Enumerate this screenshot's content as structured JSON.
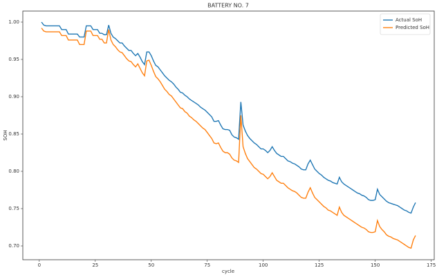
{
  "chart_data": {
    "type": "line",
    "title": "BATTERY NO. 7",
    "x_label": "cycle",
    "y_label": "SOH",
    "x": [
      1,
      2,
      3,
      4,
      5,
      6,
      7,
      8,
      9,
      10,
      11,
      12,
      13,
      14,
      15,
      16,
      17,
      18,
      19,
      20,
      21,
      22,
      23,
      24,
      25,
      26,
      27,
      28,
      29,
      30,
      31,
      32,
      33,
      34,
      35,
      36,
      37,
      38,
      39,
      40,
      41,
      42,
      43,
      44,
      45,
      46,
      47,
      48,
      49,
      50,
      51,
      52,
      53,
      54,
      55,
      56,
      57,
      58,
      59,
      60,
      61,
      62,
      63,
      64,
      65,
      66,
      67,
      68,
      69,
      70,
      71,
      72,
      73,
      74,
      75,
      76,
      77,
      78,
      79,
      80,
      81,
      82,
      83,
      84,
      85,
      86,
      87,
      88,
      89,
      90,
      91,
      92,
      93,
      94,
      95,
      96,
      97,
      98,
      99,
      100,
      101,
      102,
      103,
      104,
      105,
      106,
      107,
      108,
      109,
      110,
      111,
      112,
      113,
      114,
      115,
      116,
      117,
      118,
      119,
      120,
      121,
      122,
      123,
      124,
      125,
      126,
      127,
      128,
      129,
      130,
      131,
      132,
      133,
      134,
      135,
      136,
      137,
      138,
      139,
      140,
      141,
      142,
      143,
      144,
      145,
      146,
      147,
      148,
      149,
      150,
      151,
      152,
      153,
      154,
      155,
      156,
      157,
      158,
      159,
      160,
      161,
      162,
      163,
      164,
      165,
      166,
      167,
      168
    ],
    "series": [
      {
        "name": "Actual SoH",
        "color": "#1f77b4",
        "values": [
          1.0,
          0.996,
          0.995,
          0.995,
          0.995,
          0.995,
          0.995,
          0.995,
          0.995,
          0.99,
          0.99,
          0.99,
          0.984,
          0.984,
          0.984,
          0.984,
          0.984,
          0.98,
          0.98,
          0.98,
          0.995,
          0.995,
          0.995,
          0.99,
          0.99,
          0.99,
          0.985,
          0.985,
          0.983,
          0.983,
          0.996,
          0.985,
          0.98,
          0.978,
          0.975,
          0.972,
          0.972,
          0.968,
          0.965,
          0.962,
          0.962,
          0.958,
          0.955,
          0.958,
          0.953,
          0.947,
          0.943,
          0.96,
          0.96,
          0.955,
          0.948,
          0.942,
          0.94,
          0.936,
          0.932,
          0.928,
          0.925,
          0.922,
          0.92,
          0.917,
          0.913,
          0.91,
          0.906,
          0.905,
          0.902,
          0.9,
          0.897,
          0.895,
          0.893,
          0.891,
          0.889,
          0.886,
          0.884,
          0.882,
          0.879,
          0.876,
          0.873,
          0.867,
          0.867,
          0.868,
          0.862,
          0.857,
          0.856,
          0.856,
          0.855,
          0.849,
          0.846,
          0.845,
          0.843,
          0.893,
          0.862,
          0.854,
          0.848,
          0.844,
          0.841,
          0.838,
          0.836,
          0.833,
          0.83,
          0.83,
          0.828,
          0.825,
          0.828,
          0.833,
          0.828,
          0.824,
          0.822,
          0.82,
          0.82,
          0.817,
          0.814,
          0.813,
          0.811,
          0.81,
          0.808,
          0.806,
          0.803,
          0.802,
          0.802,
          0.81,
          0.815,
          0.809,
          0.803,
          0.8,
          0.797,
          0.795,
          0.792,
          0.79,
          0.788,
          0.787,
          0.785,
          0.784,
          0.783,
          0.792,
          0.786,
          0.783,
          0.781,
          0.779,
          0.777,
          0.775,
          0.773,
          0.771,
          0.77,
          0.768,
          0.767,
          0.765,
          0.762,
          0.761,
          0.761,
          0.762,
          0.776,
          0.769,
          0.766,
          0.763,
          0.76,
          0.758,
          0.757,
          0.756,
          0.755,
          0.754,
          0.752,
          0.75,
          0.748,
          0.747,
          0.745,
          0.744,
          0.752,
          0.758
        ]
      },
      {
        "name": "Predicted SoH",
        "color": "#ff7f0e",
        "values": [
          0.992,
          0.988,
          0.987,
          0.987,
          0.987,
          0.987,
          0.987,
          0.987,
          0.987,
          0.982,
          0.982,
          0.982,
          0.976,
          0.976,
          0.976,
          0.976,
          0.976,
          0.97,
          0.97,
          0.97,
          0.988,
          0.988,
          0.988,
          0.982,
          0.982,
          0.982,
          0.977,
          0.977,
          0.972,
          0.972,
          0.99,
          0.976,
          0.97,
          0.967,
          0.963,
          0.96,
          0.959,
          0.955,
          0.951,
          0.948,
          0.947,
          0.943,
          0.94,
          0.944,
          0.938,
          0.932,
          0.928,
          0.948,
          0.949,
          0.942,
          0.934,
          0.927,
          0.924,
          0.92,
          0.915,
          0.91,
          0.907,
          0.903,
          0.901,
          0.897,
          0.893,
          0.889,
          0.885,
          0.884,
          0.88,
          0.878,
          0.874,
          0.872,
          0.869,
          0.867,
          0.864,
          0.861,
          0.858,
          0.856,
          0.852,
          0.848,
          0.844,
          0.838,
          0.837,
          0.838,
          0.832,
          0.827,
          0.825,
          0.825,
          0.823,
          0.818,
          0.815,
          0.814,
          0.812,
          0.875,
          0.833,
          0.824,
          0.817,
          0.813,
          0.809,
          0.805,
          0.803,
          0.8,
          0.797,
          0.796,
          0.793,
          0.79,
          0.793,
          0.798,
          0.793,
          0.788,
          0.786,
          0.784,
          0.784,
          0.781,
          0.778,
          0.776,
          0.774,
          0.773,
          0.771,
          0.768,
          0.765,
          0.764,
          0.764,
          0.772,
          0.778,
          0.771,
          0.765,
          0.762,
          0.759,
          0.756,
          0.753,
          0.751,
          0.748,
          0.747,
          0.745,
          0.743,
          0.741,
          0.752,
          0.745,
          0.741,
          0.739,
          0.737,
          0.735,
          0.733,
          0.731,
          0.729,
          0.727,
          0.725,
          0.724,
          0.722,
          0.719,
          0.718,
          0.718,
          0.719,
          0.734,
          0.726,
          0.722,
          0.719,
          0.715,
          0.713,
          0.712,
          0.71,
          0.709,
          0.708,
          0.706,
          0.704,
          0.702,
          0.7,
          0.698,
          0.697,
          0.708,
          0.714
        ]
      }
    ],
    "xlim": [
      -7.35,
      176.35
    ],
    "xticks": [
      0,
      25,
      50,
      75,
      100,
      125,
      150,
      175
    ],
    "ylim": [
      0.6815,
      1.0148
    ],
    "yticks": [
      {
        "value": 0.7,
        "label": "0.70"
      },
      0.75,
      {
        "value": 0.8,
        "label": "0.80"
      },
      0.85,
      {
        "value": 0.9,
        "label": "0.90"
      },
      0.95,
      {
        "value": 1.0,
        "label": "1.00"
      }
    ],
    "grid": false,
    "legend": "upper right"
  }
}
